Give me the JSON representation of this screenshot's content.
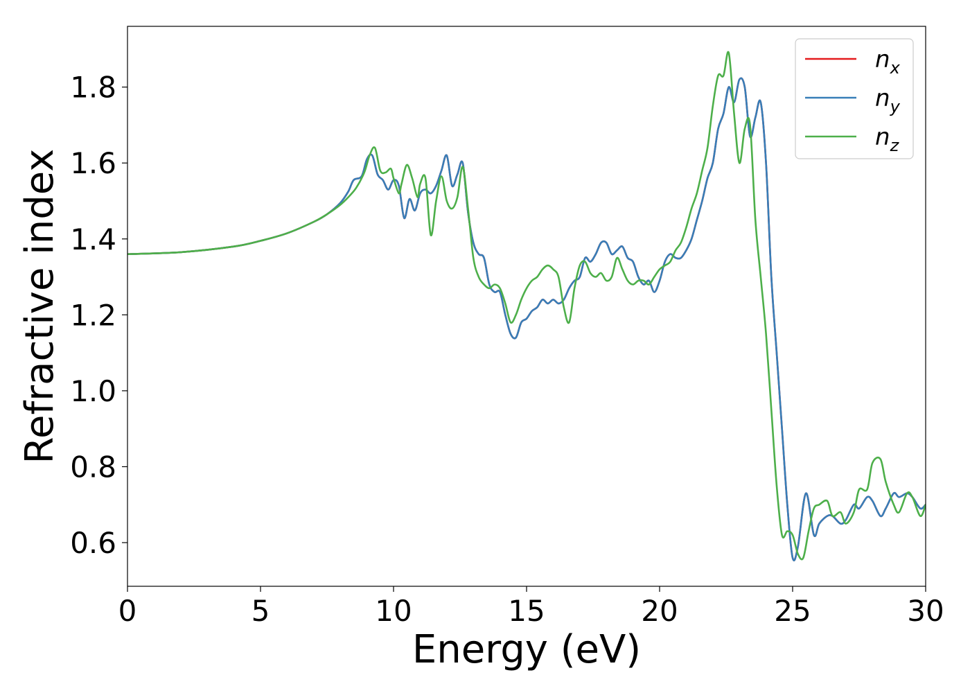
{
  "chart_data": {
    "type": "line",
    "title": "",
    "xlabel": "Energy (eV)",
    "ylabel": "Refractive index",
    "xlim": [
      0,
      30
    ],
    "ylim": [
      0.485,
      1.96
    ],
    "xticks": [
      0,
      5,
      10,
      15,
      20,
      25,
      30
    ],
    "xtick_labels": [
      "0",
      "5",
      "10",
      "15",
      "20",
      "25",
      "30"
    ],
    "yticks": [
      0.6,
      0.8,
      1.0,
      1.2,
      1.4,
      1.6,
      1.8
    ],
    "ytick_labels": [
      "0.6",
      "0.8",
      "1.0",
      "1.2",
      "1.4",
      "1.6",
      "1.8"
    ],
    "grid": false,
    "legend_position": "top-right",
    "colors": {
      "nx": "#e41a1c",
      "ny": "#377eb8",
      "nz": "#4daf4a"
    },
    "series": [
      {
        "name": "n_x",
        "legend_main": "n",
        "legend_sub": "x",
        "color": "#e41a1c",
        "x": [
          0,
          2,
          4,
          5,
          6,
          7,
          7.5,
          8,
          8.3,
          8.5,
          8.8,
          9.0,
          9.2,
          9.4,
          9.6,
          9.8,
          10.0,
          10.2,
          10.4,
          10.6,
          10.8,
          11.0,
          11.2,
          11.4,
          11.6,
          11.8,
          12.0,
          12.2,
          12.4,
          12.6,
          12.8,
          13.0,
          13.2,
          13.4,
          13.6,
          13.8,
          14.0,
          14.2,
          14.4,
          14.6,
          14.8,
          15.0,
          15.2,
          15.4,
          15.6,
          15.8,
          16.0,
          16.2,
          16.4,
          16.6,
          16.8,
          17.0,
          17.2,
          17.4,
          17.6,
          17.8,
          18.0,
          18.2,
          18.4,
          18.6,
          18.8,
          19.0,
          19.2,
          19.4,
          19.6,
          19.8,
          20.0,
          20.2,
          20.4,
          20.6,
          20.8,
          21.0,
          21.2,
          21.4,
          21.6,
          21.8,
          22.0,
          22.2,
          22.4,
          22.6,
          22.8,
          23.0,
          23.2,
          23.4,
          23.6,
          23.8,
          24.0,
          24.2,
          24.4,
          24.6,
          24.8,
          25.0,
          25.2,
          25.5,
          25.8,
          26.0,
          26.3,
          26.5,
          26.8,
          27.0,
          27.3,
          27.5,
          27.8,
          28.0,
          28.3,
          28.5,
          28.8,
          29.0,
          29.3,
          29.5,
          29.8,
          30.0
        ],
        "y": [
          1.36,
          1.365,
          1.38,
          1.395,
          1.415,
          1.445,
          1.465,
          1.495,
          1.525,
          1.555,
          1.565,
          1.61,
          1.62,
          1.57,
          1.555,
          1.53,
          1.555,
          1.54,
          1.455,
          1.505,
          1.475,
          1.52,
          1.53,
          1.52,
          1.54,
          1.58,
          1.62,
          1.54,
          1.57,
          1.6,
          1.47,
          1.39,
          1.36,
          1.35,
          1.28,
          1.26,
          1.26,
          1.2,
          1.15,
          1.14,
          1.18,
          1.19,
          1.21,
          1.22,
          1.24,
          1.23,
          1.24,
          1.23,
          1.24,
          1.27,
          1.29,
          1.3,
          1.35,
          1.34,
          1.36,
          1.39,
          1.39,
          1.36,
          1.37,
          1.38,
          1.35,
          1.34,
          1.3,
          1.28,
          1.29,
          1.26,
          1.29,
          1.34,
          1.36,
          1.35,
          1.35,
          1.37,
          1.4,
          1.45,
          1.5,
          1.56,
          1.6,
          1.69,
          1.73,
          1.8,
          1.76,
          1.82,
          1.8,
          1.67,
          1.72,
          1.76,
          1.6,
          1.3,
          1.1,
          0.9,
          0.7,
          0.56,
          0.59,
          0.73,
          0.62,
          0.65,
          0.67,
          0.67,
          0.65,
          0.66,
          0.7,
          0.69,
          0.72,
          0.71,
          0.67,
          0.69,
          0.73,
          0.72,
          0.73,
          0.72,
          0.69,
          0.7
        ]
      },
      {
        "name": "n_y",
        "legend_main": "n",
        "legend_sub": "y",
        "color": "#377eb8",
        "x": [
          0,
          2,
          4,
          5,
          6,
          7,
          7.5,
          8,
          8.3,
          8.5,
          8.8,
          9.0,
          9.2,
          9.4,
          9.6,
          9.8,
          10.0,
          10.2,
          10.4,
          10.6,
          10.8,
          11.0,
          11.2,
          11.4,
          11.6,
          11.8,
          12.0,
          12.2,
          12.4,
          12.6,
          12.8,
          13.0,
          13.2,
          13.4,
          13.6,
          13.8,
          14.0,
          14.2,
          14.4,
          14.6,
          14.8,
          15.0,
          15.2,
          15.4,
          15.6,
          15.8,
          16.0,
          16.2,
          16.4,
          16.6,
          16.8,
          17.0,
          17.2,
          17.4,
          17.6,
          17.8,
          18.0,
          18.2,
          18.4,
          18.6,
          18.8,
          19.0,
          19.2,
          19.4,
          19.6,
          19.8,
          20.0,
          20.2,
          20.4,
          20.6,
          20.8,
          21.0,
          21.2,
          21.4,
          21.6,
          21.8,
          22.0,
          22.2,
          22.4,
          22.6,
          22.8,
          23.0,
          23.2,
          23.4,
          23.6,
          23.8,
          24.0,
          24.2,
          24.4,
          24.6,
          24.8,
          25.0,
          25.2,
          25.5,
          25.8,
          26.0,
          26.3,
          26.5,
          26.8,
          27.0,
          27.3,
          27.5,
          27.8,
          28.0,
          28.3,
          28.5,
          28.8,
          29.0,
          29.3,
          29.5,
          29.8,
          30.0
        ],
        "y": [
          1.36,
          1.365,
          1.38,
          1.395,
          1.415,
          1.445,
          1.465,
          1.495,
          1.525,
          1.555,
          1.565,
          1.61,
          1.62,
          1.57,
          1.555,
          1.53,
          1.555,
          1.54,
          1.455,
          1.505,
          1.475,
          1.52,
          1.53,
          1.52,
          1.54,
          1.58,
          1.62,
          1.54,
          1.57,
          1.6,
          1.47,
          1.39,
          1.36,
          1.35,
          1.28,
          1.26,
          1.26,
          1.2,
          1.15,
          1.14,
          1.18,
          1.19,
          1.21,
          1.22,
          1.24,
          1.23,
          1.24,
          1.23,
          1.24,
          1.27,
          1.29,
          1.3,
          1.35,
          1.34,
          1.36,
          1.39,
          1.39,
          1.36,
          1.37,
          1.38,
          1.35,
          1.34,
          1.3,
          1.28,
          1.29,
          1.26,
          1.29,
          1.34,
          1.36,
          1.35,
          1.35,
          1.37,
          1.4,
          1.45,
          1.5,
          1.56,
          1.6,
          1.69,
          1.73,
          1.8,
          1.76,
          1.82,
          1.8,
          1.67,
          1.72,
          1.76,
          1.6,
          1.3,
          1.1,
          0.9,
          0.7,
          0.56,
          0.59,
          0.73,
          0.62,
          0.65,
          0.67,
          0.67,
          0.65,
          0.66,
          0.7,
          0.69,
          0.72,
          0.71,
          0.67,
          0.69,
          0.73,
          0.72,
          0.73,
          0.72,
          0.69,
          0.7
        ]
      },
      {
        "name": "n_z",
        "legend_main": "n",
        "legend_sub": "z",
        "color": "#4daf4a",
        "x": [
          0,
          2,
          4,
          5,
          6,
          7,
          7.5,
          8,
          8.3,
          8.6,
          8.9,
          9.1,
          9.3,
          9.5,
          9.7,
          9.9,
          10.0,
          10.2,
          10.3,
          10.5,
          10.7,
          10.9,
          11.0,
          11.2,
          11.4,
          11.6,
          11.8,
          12.0,
          12.2,
          12.4,
          12.6,
          12.8,
          13.0,
          13.2,
          13.4,
          13.6,
          13.8,
          14.0,
          14.2,
          14.4,
          14.6,
          14.8,
          15.0,
          15.2,
          15.4,
          15.6,
          15.8,
          16.0,
          16.2,
          16.4,
          16.6,
          16.8,
          17.0,
          17.2,
          17.4,
          17.6,
          17.8,
          18.0,
          18.2,
          18.4,
          18.6,
          18.8,
          19.0,
          19.2,
          19.4,
          19.6,
          19.8,
          20.0,
          20.2,
          20.4,
          20.6,
          20.8,
          21.0,
          21.2,
          21.4,
          21.6,
          21.8,
          22.0,
          22.2,
          22.4,
          22.6,
          22.8,
          23.0,
          23.2,
          23.4,
          23.6,
          23.8,
          24.0,
          24.2,
          24.4,
          24.6,
          24.8,
          25.0,
          25.2,
          25.4,
          25.6,
          25.8,
          26.0,
          26.3,
          26.5,
          26.8,
          27.0,
          27.3,
          27.5,
          27.8,
          28.0,
          28.3,
          28.5,
          28.8,
          29.0,
          29.3,
          29.5,
          29.8,
          30.0
        ],
        "y": [
          1.36,
          1.365,
          1.38,
          1.395,
          1.415,
          1.445,
          1.465,
          1.49,
          1.51,
          1.535,
          1.575,
          1.62,
          1.64,
          1.58,
          1.575,
          1.585,
          1.56,
          1.52,
          1.545,
          1.595,
          1.56,
          1.51,
          1.545,
          1.56,
          1.41,
          1.5,
          1.565,
          1.5,
          1.48,
          1.51,
          1.59,
          1.48,
          1.35,
          1.3,
          1.28,
          1.27,
          1.28,
          1.27,
          1.23,
          1.18,
          1.2,
          1.24,
          1.27,
          1.29,
          1.3,
          1.32,
          1.33,
          1.32,
          1.3,
          1.22,
          1.18,
          1.27,
          1.33,
          1.34,
          1.31,
          1.3,
          1.31,
          1.29,
          1.3,
          1.35,
          1.32,
          1.29,
          1.28,
          1.29,
          1.29,
          1.28,
          1.3,
          1.32,
          1.33,
          1.34,
          1.37,
          1.39,
          1.43,
          1.48,
          1.52,
          1.58,
          1.64,
          1.75,
          1.83,
          1.83,
          1.89,
          1.73,
          1.6,
          1.69,
          1.7,
          1.45,
          1.3,
          1.15,
          0.95,
          0.75,
          0.62,
          0.63,
          0.62,
          0.57,
          0.56,
          0.63,
          0.69,
          0.7,
          0.71,
          0.67,
          0.68,
          0.65,
          0.68,
          0.74,
          0.74,
          0.81,
          0.82,
          0.76,
          0.7,
          0.68,
          0.73,
          0.72,
          0.67,
          0.7
        ]
      }
    ]
  }
}
